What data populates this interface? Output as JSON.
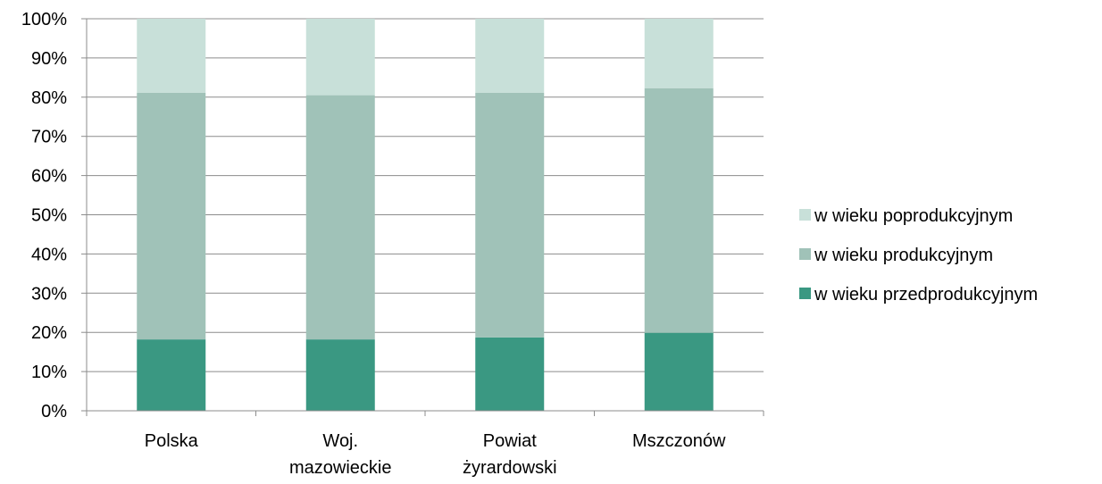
{
  "chart_data": {
    "type": "bar",
    "stacked": true,
    "percent_stacked": true,
    "categories": [
      [
        "Polska"
      ],
      [
        "Woj.",
        "mazowieckie"
      ],
      [
        "Powiat",
        "żyrardowski"
      ],
      [
        "Mszczonów"
      ]
    ],
    "series": [
      {
        "name": "w wieku przedprodukcyjnym",
        "color": "#3a9882",
        "values": [
          18.2,
          18.2,
          18.7,
          19.9
        ]
      },
      {
        "name": "w wieku produkcyjnym",
        "color": "#a0c2b8",
        "values": [
          62.9,
          62.3,
          62.4,
          62.4
        ]
      },
      {
        "name": "w wieku poprodukcyjnym",
        "color": "#c8e0d9",
        "values": [
          18.9,
          19.5,
          18.9,
          17.7
        ]
      }
    ],
    "ylim": [
      0,
      100
    ],
    "y_ticks": [
      "0%",
      "10%",
      "20%",
      "30%",
      "40%",
      "50%",
      "60%",
      "70%",
      "80%",
      "90%",
      "100%"
    ],
    "grid": true,
    "legend_position": "right",
    "legend_order": [
      "w wieku poprodukcyjnym",
      "w wieku produkcyjnym",
      "w wieku przedprodukcyjnym"
    ]
  }
}
